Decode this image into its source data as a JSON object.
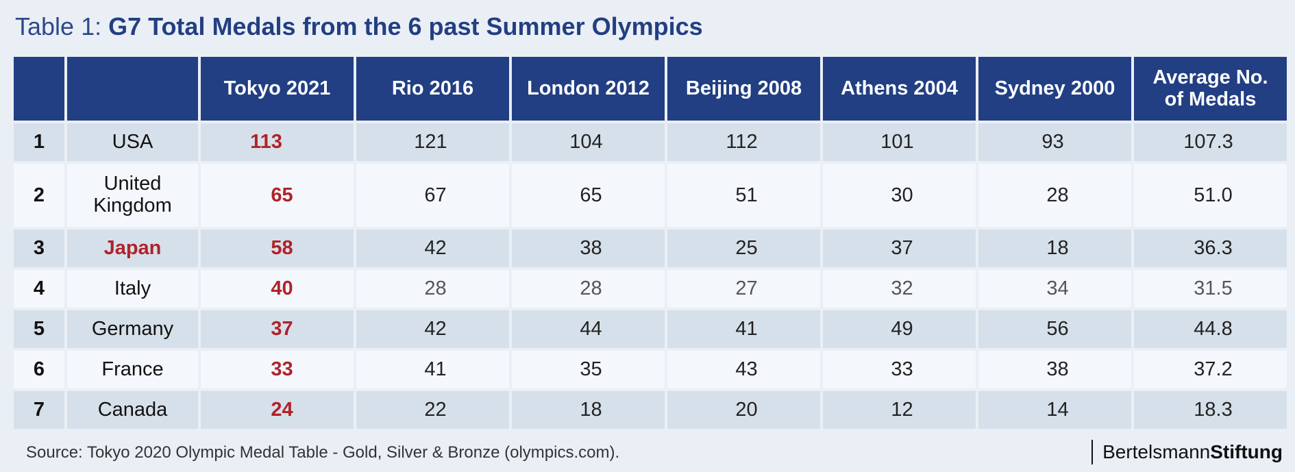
{
  "title": {
    "prefix": "Table 1: ",
    "main": "G7 Total Medals from the 6 past Summer Olympics"
  },
  "colors": {
    "header_bg": "#223f83",
    "highlight_red": "#b0222a",
    "row_dark": "#d6e0ea",
    "row_light": "#f4f7fb"
  },
  "chart_data": {
    "type": "table",
    "title": "G7 Total Medals from the 6 past Summer Olympics",
    "columns": [
      "",
      "",
      "Tokyo 2021",
      "Rio 2016",
      "London 2012",
      "Beijing 2008",
      "Athens 2004",
      "Sydney 2000",
      "Average No. of Medals"
    ],
    "rows": [
      {
        "rank": "1",
        "country": "USA",
        "values": [
          "113",
          "121",
          "104",
          "112",
          "101",
          "93",
          "107.3"
        ]
      },
      {
        "rank": "2",
        "country": "United Kingdom",
        "values": [
          "65",
          "67",
          "65",
          "51",
          "30",
          "28",
          "51.0"
        ]
      },
      {
        "rank": "3",
        "country": "Japan",
        "values": [
          "58",
          "42",
          "38",
          "25",
          "37",
          "18",
          "36.3"
        ]
      },
      {
        "rank": "4",
        "country": "Italy",
        "values": [
          "40",
          "28",
          "28",
          "27",
          "32",
          "34",
          "31.5"
        ]
      },
      {
        "rank": "5",
        "country": "Germany",
        "values": [
          "37",
          "42",
          "44",
          "41",
          "49",
          "56",
          "44.8"
        ]
      },
      {
        "rank": "6",
        "country": "France",
        "values": [
          "33",
          "41",
          "35",
          "43",
          "33",
          "38",
          "37.2"
        ]
      },
      {
        "rank": "7",
        "country": "Canada",
        "values": [
          "24",
          "22",
          "18",
          "20",
          "12",
          "14",
          "18.3"
        ]
      }
    ]
  },
  "footer": {
    "source": "Source: Tokyo 2020 Olympic Medal Table - Gold, Silver & Bronze (olympics.com).",
    "brand_part1": "Bertelsmann",
    "brand_part2": "Stiftung"
  }
}
